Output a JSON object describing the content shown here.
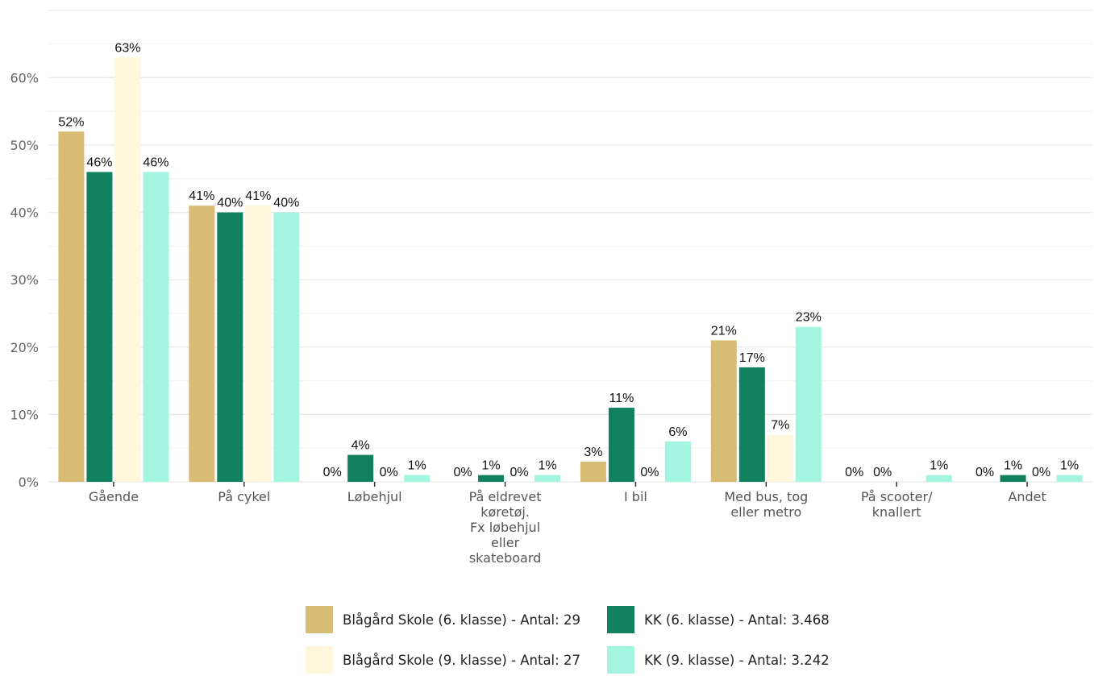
{
  "chart_data": {
    "type": "bar",
    "categories": [
      [
        "Gående"
      ],
      [
        "På cykel"
      ],
      [
        "Løbehjul"
      ],
      [
        "På eldrevet",
        "køretøj.",
        "Fx løbehjul",
        "eller",
        "skateboard"
      ],
      [
        "I bil"
      ],
      [
        "Med bus, tog",
        "eller metro"
      ],
      [
        "På scooter/",
        "knallert"
      ],
      [
        "Andet"
      ]
    ],
    "series": [
      {
        "name": "Blågård Skole (6. klasse) - Antal: 29",
        "color": "#D9BC74",
        "values": [
          52,
          41,
          0,
          0,
          3,
          21,
          0,
          0
        ]
      },
      {
        "name": "KK (6. klasse) - Antal: 3.468",
        "color": "#10805F",
        "values": [
          46,
          40,
          4,
          1,
          11,
          17,
          0,
          1
        ]
      },
      {
        "name": "Blågård Skole (9. klasse) - Antal: 27",
        "color": "#FFF6DC",
        "values": [
          63,
          41,
          0,
          0,
          0,
          7,
          null,
          0
        ]
      },
      {
        "name": "KK (9. klasse) - Antal: 3.242",
        "color": "#A3F5E0",
        "values": [
          46,
          40,
          1,
          1,
          6,
          23,
          1,
          1
        ]
      }
    ],
    "value_suffix": "%",
    "ylim": [
      0,
      70
    ],
    "yticks": [
      0,
      10,
      20,
      30,
      40,
      50,
      60
    ],
    "ytick_labels": [
      "0%",
      "10%",
      "20%",
      "30%",
      "40%",
      "50%",
      "60%"
    ],
    "grid": true,
    "legend_position": "bottom"
  }
}
